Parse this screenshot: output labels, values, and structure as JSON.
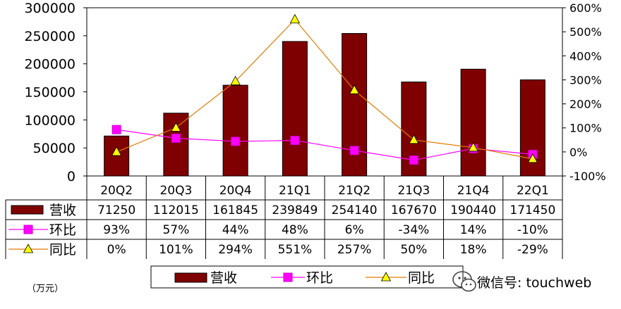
{
  "chart_data": {
    "type": "bar",
    "categories": [
      "20Q2",
      "20Q3",
      "20Q4",
      "21Q1",
      "21Q2",
      "21Q3",
      "21Q4",
      "22Q1"
    ],
    "y_left": {
      "ylim": [
        0,
        300000
      ],
      "ticks": [
        0,
        50000,
        100000,
        150000,
        200000,
        250000,
        300000
      ],
      "tick_labels": [
        "0",
        "50000",
        "100000",
        "150000",
        "200000",
        "250000",
        "300000"
      ]
    },
    "y_right": {
      "ylim": [
        -100,
        600
      ],
      "ticks": [
        -100,
        0,
        100,
        200,
        300,
        400,
        500,
        600
      ],
      "tick_labels": [
        "-100%",
        "0%",
        "100%",
        "200%",
        "300%",
        "400%",
        "500%",
        "600%"
      ]
    },
    "series": [
      {
        "name": "营收",
        "kind": "bar",
        "axis": "left",
        "color": "#7f0000",
        "values": [
          71250,
          112015,
          161845,
          239849,
          254140,
          167670,
          190440,
          171450
        ],
        "labels": [
          "71250",
          "112015",
          "161845",
          "239849",
          "254140",
          "167670",
          "190440",
          "171450"
        ]
      },
      {
        "name": "环比",
        "kind": "line",
        "marker": "square",
        "axis": "right",
        "color": "#ff00ff",
        "values": [
          93,
          57,
          44,
          48,
          6,
          -34,
          14,
          -10
        ],
        "labels": [
          "93%",
          "57%",
          "44%",
          "48%",
          "6%",
          "-34%",
          "14%",
          "-10%"
        ]
      },
      {
        "name": "同比",
        "kind": "line",
        "marker": "triangle",
        "axis": "right",
        "color": "#e07b00",
        "values": [
          0,
          101,
          294,
          551,
          257,
          50,
          18,
          -29
        ],
        "labels": [
          "0%",
          "101%",
          "294%",
          "551%",
          "257%",
          "50%",
          "18%",
          "-29%"
        ]
      }
    ],
    "legend": {
      "placement": "bottom",
      "items": [
        "营收",
        "环比",
        "同比"
      ]
    },
    "unit_note": "（万元）",
    "watermark": "微信号: touchweb"
  }
}
